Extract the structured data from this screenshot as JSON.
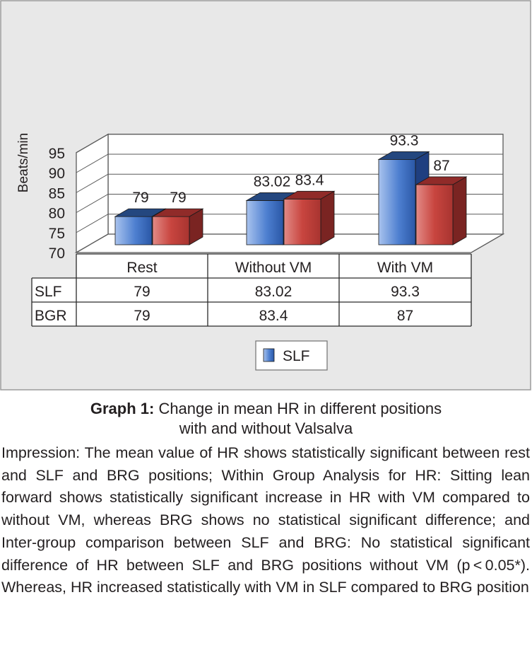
{
  "chart_data": {
    "type": "bar",
    "style": "3d-clustered-bar-with-data-table",
    "categories": [
      "Rest",
      "Without VM",
      "With VM"
    ],
    "series": [
      {
        "name": "SLF",
        "values": [
          79,
          83.02,
          93.3
        ],
        "labels": [
          "79",
          "83.02",
          "93.3"
        ],
        "color": "#3d6cc0"
      },
      {
        "name": "BGR",
        "values": [
          79,
          83.4,
          87
        ],
        "labels": [
          "79",
          "83.4",
          "87"
        ],
        "color": "#c0413f"
      }
    ],
    "ylabel": "Beats/min",
    "ylim": [
      70,
      95
    ],
    "yticks": [
      "95",
      "90",
      "85",
      "80",
      "75",
      "70"
    ],
    "grid": true,
    "legend": {
      "position": "bottom",
      "entries": [
        "SLF"
      ]
    }
  },
  "caption": {
    "label": "Graph 1:",
    "text": "Change in mean HR in different positions",
    "text_line2": "with and without Valsalva"
  },
  "impression": "Impression: The mean value of HR shows statistically significant between rest and SLF and BRG positions; Within Group Analysis for HR: Sitting lean forward shows statistically significant increase in HR with VM compared to without VM, whereas BRG shows no statistical significant difference; and Inter-group comparison between SLF and BRG: No statistical significant difference of HR between SLF and BRG positions without VM (p < 0.05*). Whereas, HR increased statistically with VM in SLF compared to BRG position"
}
